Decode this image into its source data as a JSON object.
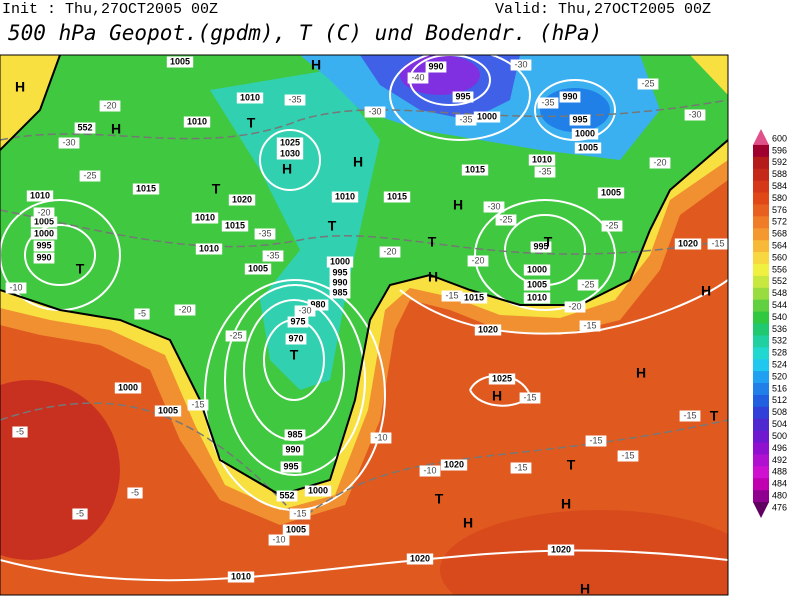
{
  "header": {
    "init": "Init : Thu,27OCT2005 00Z",
    "valid": "Valid: Thu,27OCT2005 00Z",
    "title": "500 hPa Geopot.(gpdm), T (C) und Bodendr. (hPa)"
  },
  "colorbar": {
    "levels": [
      "600",
      "596",
      "592",
      "588",
      "584",
      "580",
      "576",
      "572",
      "568",
      "564",
      "560",
      "556",
      "552",
      "548",
      "544",
      "540",
      "536",
      "532",
      "528",
      "524",
      "520",
      "516",
      "512",
      "508",
      "504",
      "500",
      "496",
      "492",
      "488",
      "484",
      "480",
      "476"
    ],
    "colors": [
      "#e0508a",
      "#a00030",
      "#b41c1c",
      "#c42818",
      "#d43818",
      "#e04818",
      "#e86020",
      "#f07c28",
      "#f49830",
      "#f8b838",
      "#f8d840",
      "#f0f040",
      "#c8e840",
      "#98dc40",
      "#60d040",
      "#30c840",
      "#20c870",
      "#20d0a0",
      "#20d8d0",
      "#20c8f0",
      "#20a0f0",
      "#2080e8",
      "#2060e0",
      "#3040d8",
      "#5028d0",
      "#7018d0",
      "#9010d0",
      "#b010d0",
      "#d010d0",
      "#c000b0",
      "#900090",
      "#600060"
    ]
  },
  "map": {
    "pressure_labels": [
      "1005",
      "1010",
      "1010",
      "1025",
      "1030",
      "1020",
      "1015",
      "1010",
      "1005",
      "1000",
      "995",
      "990",
      "1010",
      "1015",
      "1010",
      "1005",
      "1010",
      "1015",
      "1000",
      "995",
      "990",
      "985",
      "980",
      "975",
      "970",
      "985",
      "990",
      "995",
      "1000",
      "1005",
      "1010",
      "1000",
      "1005",
      "990",
      "995",
      "1000",
      "990",
      "995",
      "1000",
      "1005",
      "1010",
      "1015",
      "1015",
      "1005",
      "995",
      "1000",
      "1005",
      "1010",
      "1020",
      "1020",
      "1025",
      "1020",
      "1020",
      "1020"
    ],
    "geopotential_labels": [
      "552",
      "552"
    ],
    "temperature_labels": [
      "-20",
      "-30",
      "-25",
      "-20",
      "-10",
      "-5",
      "-20",
      "-25",
      "-15",
      "-5",
      "-5",
      "-5",
      "-35",
      "-30",
      "-35",
      "-35",
      "-30",
      "-20",
      "-20",
      "-25",
      "-30",
      "-35",
      "-40",
      "-35",
      "-30",
      "-35",
      "-25",
      "-30",
      "-20",
      "-25",
      "-25",
      "-20",
      "-15",
      "-15",
      "-15",
      "-15",
      "-15",
      "-15",
      "-15",
      "-15",
      "-10",
      "-10",
      "-15",
      "-10"
    ],
    "pressure_centers": [
      "H",
      "H",
      "H",
      "T",
      "H",
      "H",
      "T",
      "T",
      "T",
      "T",
      "H",
      "T",
      "H",
      "T",
      "H",
      "H",
      "H",
      "T",
      "T",
      "H",
      "T",
      "H",
      "H"
    ]
  }
}
